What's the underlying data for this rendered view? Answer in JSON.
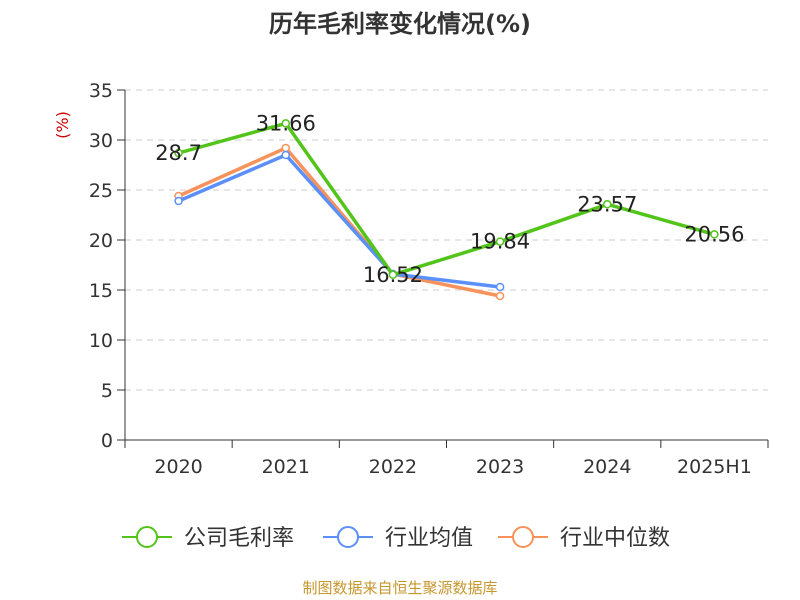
{
  "chart_data": {
    "type": "line",
    "title": "历年毛利率变化情况(%)",
    "ylabel": "(%)",
    "categories": [
      "2020",
      "2021",
      "2022",
      "2023",
      "2024",
      "2025H1"
    ],
    "ylim": [
      0,
      35
    ],
    "yticks": [
      0,
      5,
      10,
      15,
      20,
      25,
      30,
      35
    ],
    "grid": true,
    "legend_position": "bottom",
    "series": [
      {
        "name": "公司毛利率",
        "color": "#52c41a",
        "values": [
          28.7,
          31.66,
          16.52,
          19.84,
          23.57,
          20.56
        ],
        "labels": [
          "28.7",
          "31.66",
          "16.52",
          "19.84",
          "23.57",
          "20.56"
        ]
      },
      {
        "name": "行业均值",
        "color": "#5b8ff9",
        "values": [
          23.9,
          28.5,
          16.6,
          15.3,
          null,
          null
        ]
      },
      {
        "name": "行业中位数",
        "color": "#f6925a",
        "values": [
          24.4,
          29.2,
          16.6,
          14.4,
          null,
          null
        ]
      }
    ]
  },
  "colors": {
    "unit": "#cc0000",
    "source": "#c8962e",
    "grid": "#cccccc",
    "axis": "#333333"
  },
  "source": "制图数据来自恒生聚源数据库"
}
